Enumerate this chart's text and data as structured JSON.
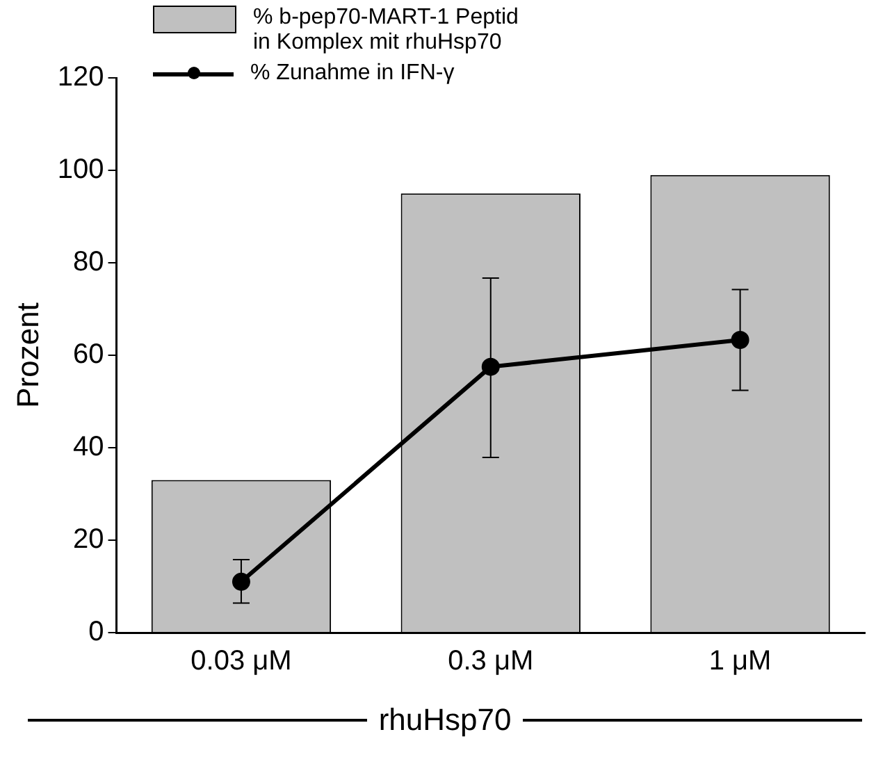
{
  "chart_data": {
    "type": "bar",
    "categories": [
      "0.03 μM",
      "0.3 μM",
      "1 μM"
    ],
    "ylabel": "Prozent",
    "xlabel": "rhuHsp70",
    "ylim": [
      0,
      120
    ],
    "yticks": [
      0,
      20,
      40,
      60,
      80,
      100,
      120
    ],
    "grid": false,
    "legend": "top left",
    "series": [
      {
        "name": "% b-pep70-MART-1 Peptid in Komplex mit rhuHsp70",
        "color": "#c0c0c0",
        "values": [
          33,
          95,
          99
        ]
      },
      {
        "name": "% Zunahme in IFN-γ",
        "type": "line",
        "color": "#000000",
        "marker": "circle",
        "values": [
          11,
          57.5,
          63.3
        ],
        "errors": [
          [
            6.4,
            15.8
          ],
          [
            37.9,
            76.7
          ],
          [
            52.4,
            74.2
          ]
        ]
      }
    ]
  }
}
